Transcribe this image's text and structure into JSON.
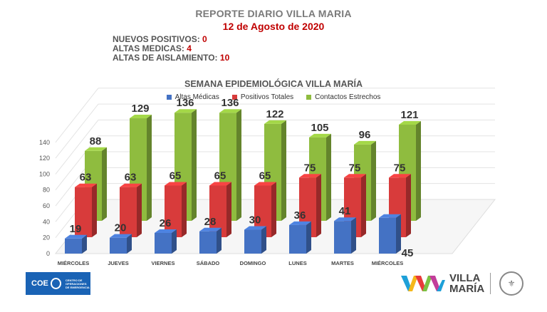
{
  "header": {
    "title": "REPORTE DIARIO VILLA MARIA",
    "date": "12 de Agosto de 2020"
  },
  "stats": [
    {
      "label": "NUEVOS POSITIVOS:",
      "value": "0"
    },
    {
      "label": "ALTAS MEDICAS:",
      "value": "4"
    },
    {
      "label": "ALTAS DE AISLAMIENTO:",
      "value": "10"
    }
  ],
  "chart_data": {
    "type": "bar",
    "title": "SEMANA EPIDEMIOLÓGICA VILLA MARÍA",
    "categories": [
      "MIÉRCOLES",
      "JUEVES",
      "VIERNES",
      "SÁBADO",
      "DOMINGO",
      "LUNES",
      "MARTES",
      "MIÉRCOLES"
    ],
    "series": [
      {
        "name": "Altas Médicas",
        "color": "#4472c4",
        "values": [
          19,
          20,
          26,
          28,
          30,
          36,
          41,
          45
        ]
      },
      {
        "name": "Positivos Totales",
        "color": "#d83b3b",
        "values": [
          63,
          63,
          65,
          65,
          65,
          75,
          75,
          75
        ]
      },
      {
        "name": "Contactos Estrechos",
        "color": "#8fbc3f",
        "values": [
          88,
          129,
          136,
          136,
          122,
          105,
          96,
          121
        ]
      }
    ],
    "yticks": [
      0,
      20,
      40,
      60,
      80,
      100,
      120,
      140
    ],
    "ylim": [
      0,
      140
    ],
    "legend_position": "top",
    "grid": true,
    "style": "3d-clustered-bar"
  },
  "logos": {
    "left_text": "COE",
    "left_small": "CENTRO DE OPERACIONES DE EMERGENCIA",
    "right_line1": "VILLA",
    "right_line2": "MARÍA"
  }
}
